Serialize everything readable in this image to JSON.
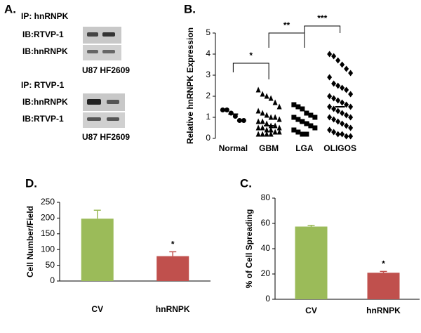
{
  "panel_a": {
    "label": "A.",
    "blocks": [
      {
        "ip": "IP: hnRNPK",
        "rows": [
          "IB:RTVP-1",
          "IB:hnRNPK"
        ],
        "lanes": "U87 HF2609"
      },
      {
        "ip": "IP: RTVP-1",
        "rows": [
          "IB:hnRNPK",
          "IB:RTVP-1"
        ],
        "lanes": "U87 HF2609"
      }
    ]
  },
  "chart_data": [
    {
      "type": "strip",
      "label": "B.",
      "y_label": "Relative hnRNPK Expression",
      "categories": [
        "Normal",
        "GBM",
        "LGA",
        "OLIGOS"
      ],
      "markers": [
        "circle",
        "triangle",
        "square",
        "diamond"
      ],
      "color": "#000000",
      "values": [
        [
          1.35,
          1.35,
          1.2,
          1.05,
          0.85,
          0.85
        ],
        [
          2.3,
          2.1,
          2.0,
          1.9,
          1.7,
          1.5,
          1.3,
          1.2,
          1.1,
          1.0,
          1.0,
          0.9,
          0.8,
          0.8,
          0.7,
          0.6,
          0.6,
          0.5,
          0.5,
          0.5,
          0.4,
          0.4,
          0.3,
          0.3,
          0.2,
          0.2,
          0.2,
          0.2
        ],
        [
          1.6,
          1.5,
          1.4,
          1.2,
          1.1,
          1.0,
          1.0,
          0.9,
          0.8,
          0.7,
          0.6,
          0.5,
          0.4,
          0.3,
          0.2,
          0.2
        ],
        [
          4.0,
          3.9,
          3.7,
          3.5,
          3.3,
          3.1,
          2.9,
          2.6,
          2.5,
          2.4,
          2.3,
          2.1,
          2.0,
          1.9,
          1.8,
          1.7,
          1.6,
          1.5,
          1.5,
          1.4,
          1.3,
          1.2,
          1.1,
          1.0,
          1.0,
          0.9,
          0.8,
          0.7,
          0.6,
          0.5,
          0.4,
          0.3,
          0.2,
          0.2,
          0.1,
          0.1
        ]
      ],
      "means": [
        1.15,
        0.6,
        0.75,
        1.5
      ],
      "annotations": [
        "*",
        "**",
        "***"
      ],
      "ylim": [
        0,
        5
      ],
      "yticks": [
        0,
        1,
        2,
        3,
        4,
        5
      ]
    },
    {
      "type": "bar",
      "label": "D.",
      "y_label": "Cell Number/Field",
      "categories": [
        "CV",
        "hnRNPK"
      ],
      "values": [
        198,
        79
      ],
      "errors": [
        27,
        14
      ],
      "colors": [
        "#9bbb59",
        "#c0504d"
      ],
      "annotation": "*",
      "ylim": [
        0,
        250
      ],
      "yticks": [
        0,
        50,
        100,
        150,
        200,
        250
      ]
    },
    {
      "type": "bar",
      "label": "C.",
      "y_label": "% of Cell Spreading",
      "categories": [
        "CV",
        "hnRNPK"
      ],
      "values": [
        57.5,
        21
      ],
      "errors": [
        1,
        1
      ],
      "colors": [
        "#9bbb59",
        "#c0504d"
      ],
      "annotation": "*",
      "ylim": [
        0,
        80
      ],
      "yticks": [
        0,
        20,
        40,
        60,
        80
      ]
    }
  ]
}
